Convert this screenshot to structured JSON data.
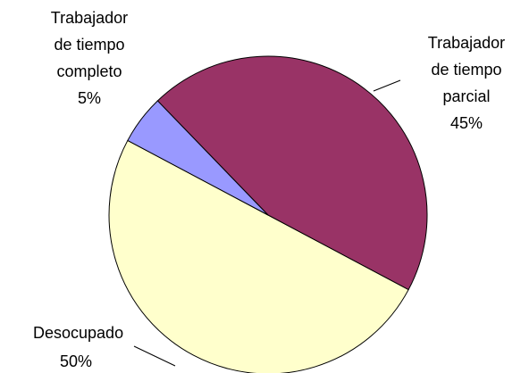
{
  "chart_data": {
    "type": "pie",
    "categories": [
      "Trabajador de tiempo completo",
      "Trabajador de tiempo parcial",
      "Desocupado"
    ],
    "values": [
      5,
      45,
      50
    ],
    "value_labels": [
      "5%",
      "45%",
      "50%"
    ],
    "colors": [
      "#9999ff",
      "#993366",
      "#ffffcc"
    ]
  }
}
